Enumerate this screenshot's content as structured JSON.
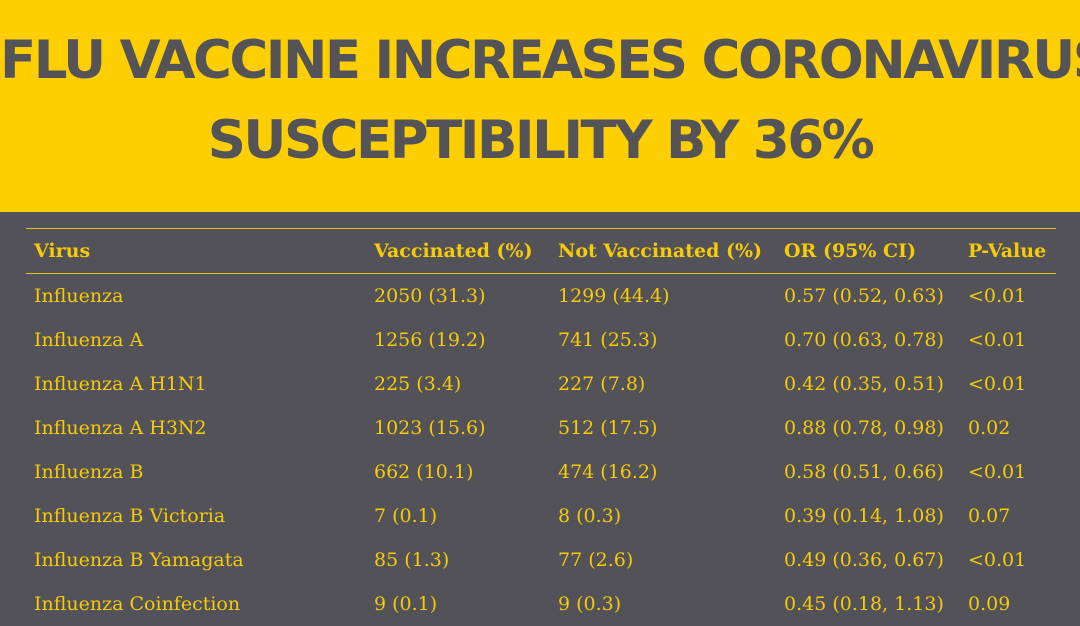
{
  "headline": {
    "line1": "FLU VACCINE INCREASES CORONAVIRUS",
    "line2": "SUSCEPTIBILITY BY 36%"
  },
  "table": {
    "headers": [
      "Virus",
      "Vaccinated (%)",
      "Not Vaccinated (%)",
      "OR (95% CI)",
      "P-Value"
    ],
    "rows": [
      [
        "Influenza",
        "2050 (31.3)",
        "1299 (44.4)",
        "0.57 (0.52, 0.63)",
        "<0.01"
      ],
      [
        "Influenza A",
        "1256 (19.2)",
        "741 (25.3)",
        "0.70 (0.63, 0.78)",
        "<0.01"
      ],
      [
        "Influenza A H1N1",
        "225 (3.4)",
        "227 (7.8)",
        "0.42 (0.35, 0.51)",
        "<0.01"
      ],
      [
        "Influenza A H3N2",
        "1023 (15.6)",
        "512 (17.5)",
        "0.88 (0.78, 0.98)",
        "0.02"
      ],
      [
        "Influenza B",
        "662 (10.1)",
        "474 (16.2)",
        "0.58 (0.51, 0.66)",
        "<0.01"
      ],
      [
        "Influenza B Victoria",
        "7 (0.1)",
        "8 (0.3)",
        "0.39 (0.14, 1.08)",
        "0.07"
      ],
      [
        "Influenza B Yamagata",
        "85 (1.3)",
        "77 (2.6)",
        "0.49 (0.36, 0.67)",
        "<0.01"
      ],
      [
        "Influenza Coinfection",
        "9 (0.1)",
        "9 (0.3)",
        "0.45 (0.18, 1.13)",
        "0.09"
      ]
    ]
  },
  "colors": {
    "banner": "#fecf00",
    "headline_text": "#545458",
    "table_background": "#535258",
    "table_text": "#f6cb08"
  }
}
